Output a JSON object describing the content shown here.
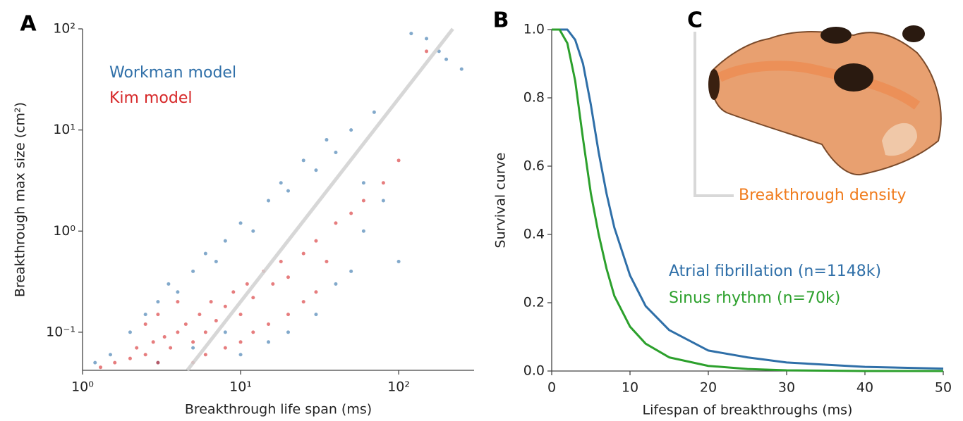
{
  "chart_data": [
    {
      "type": "scatter",
      "panel_label": "A",
      "x_label": "Breakthrough life span (ms)",
      "y_label": "Breakthrough max size (cm²)",
      "xscale": "log",
      "yscale": "log",
      "xlim": [
        1,
        300
      ],
      "ylim": [
        0.042,
        100
      ],
      "xticks": [
        {
          "value": 1,
          "label": "10⁰"
        },
        {
          "value": 10,
          "label": "10¹"
        },
        {
          "value": 100,
          "label": "10²"
        }
      ],
      "yticks": [
        {
          "value": 0.1,
          "label": "10⁻¹"
        },
        {
          "value": 1,
          "label": "10⁰"
        },
        {
          "value": 10,
          "label": "10¹"
        },
        {
          "value": 100,
          "label": "10²"
        }
      ],
      "series": [
        {
          "name": "Workman model",
          "color": "#2f6fa8",
          "x": [
            1.2,
            1.5,
            2,
            2.5,
            3,
            3.5,
            4,
            5,
            6,
            7,
            8,
            10,
            12,
            15,
            18,
            20,
            25,
            30,
            35,
            40,
            50,
            60,
            70,
            80,
            100,
            120,
            150,
            180,
            200,
            250,
            3,
            5,
            8,
            10,
            15,
            20,
            30,
            40,
            50,
            60
          ],
          "y": [
            0.05,
            0.06,
            0.1,
            0.15,
            0.2,
            0.3,
            0.25,
            0.4,
            0.6,
            0.5,
            0.8,
            1.2,
            1,
            2,
            3,
            2.5,
            5,
            4,
            8,
            6,
            10,
            3,
            15,
            2,
            0.5,
            90,
            80,
            60,
            50,
            40,
            0.05,
            0.07,
            0.1,
            0.06,
            0.08,
            0.1,
            0.15,
            0.3,
            0.4,
            1
          ]
        },
        {
          "name": "Kim model",
          "color": "#d62728",
          "x": [
            1.3,
            1.6,
            2,
            2.2,
            2.5,
            2.8,
            3,
            3.3,
            3.6,
            4,
            4.5,
            5,
            5.5,
            6,
            6.5,
            7,
            8,
            9,
            10,
            11,
            12,
            14,
            16,
            18,
            20,
            25,
            30,
            35,
            40,
            50,
            60,
            80,
            100,
            150,
            2.5,
            3,
            4,
            5,
            6,
            8,
            10,
            12,
            15,
            20,
            25,
            30
          ],
          "y": [
            0.045,
            0.05,
            0.055,
            0.07,
            0.06,
            0.08,
            0.05,
            0.09,
            0.07,
            0.1,
            0.12,
            0.08,
            0.15,
            0.1,
            0.2,
            0.13,
            0.18,
            0.25,
            0.15,
            0.3,
            0.22,
            0.4,
            0.3,
            0.5,
            0.35,
            0.6,
            0.8,
            0.5,
            1.2,
            1.5,
            2,
            3,
            5,
            60,
            0.12,
            0.15,
            0.2,
            0.05,
            0.06,
            0.07,
            0.08,
            0.1,
            0.12,
            0.15,
            0.2,
            0.25
          ]
        }
      ],
      "lines": [
        {
          "color": "#d0d0d0",
          "x": [
            4.6,
            220
          ],
          "y": [
            0.042,
            100
          ]
        }
      ]
    },
    {
      "type": "line",
      "panel_label": "B",
      "x_label": "Lifespan of breakthroughs (ms)",
      "y_label": "Survival curve",
      "xlim": [
        0,
        50
      ],
      "ylim": [
        0,
        1
      ],
      "xticks": [
        0,
        10,
        20,
        30,
        40,
        50
      ],
      "yticks": [
        {
          "value": 0,
          "label": "0.0"
        },
        {
          "value": 0.2,
          "label": "0.2"
        },
        {
          "value": 0.4,
          "label": "0.4"
        },
        {
          "value": 0.6,
          "label": "0.6"
        },
        {
          "value": 0.8,
          "label": "0.8"
        },
        {
          "value": 1,
          "label": "1.0"
        }
      ],
      "x": [
        0,
        1,
        2,
        3,
        4,
        5,
        6,
        7,
        8,
        10,
        12,
        15,
        20,
        25,
        30,
        40,
        50
      ],
      "series": [
        {
          "name": "Atrial fibrillation (n=1148k)",
          "color": "#2f6fa8",
          "values": [
            1,
            1,
            1,
            0.97,
            0.9,
            0.78,
            0.64,
            0.52,
            0.42,
            0.28,
            0.19,
            0.12,
            0.06,
            0.04,
            0.025,
            0.012,
            0.007
          ]
        },
        {
          "name": "Sinus rhythm (n=70k)",
          "color": "#2ca02c",
          "values": [
            1,
            1,
            0.96,
            0.85,
            0.68,
            0.52,
            0.4,
            0.3,
            0.22,
            0.13,
            0.08,
            0.04,
            0.015,
            0.006,
            0.002,
            0,
            0
          ]
        }
      ]
    },
    {
      "type": "image",
      "panel_label": "C",
      "label": "Breakthrough density"
    }
  ]
}
